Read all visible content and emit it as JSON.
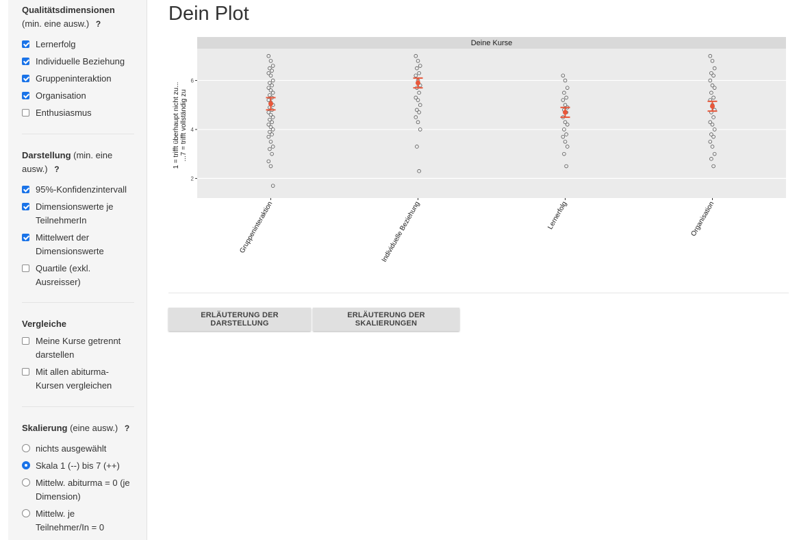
{
  "page_title": "Dein Plot",
  "sidebar": {
    "quality": {
      "title": "Qualitätsdimensionen",
      "hint": "(min. eine ausw.)",
      "help": "?",
      "options": [
        {
          "label": "Lernerfolg",
          "checked": true
        },
        {
          "label": "Individuelle Beziehung",
          "checked": true
        },
        {
          "label": "Gruppeninteraktion",
          "checked": true
        },
        {
          "label": "Organisation",
          "checked": true
        },
        {
          "label": "Enthusiasmus",
          "checked": false
        }
      ]
    },
    "display": {
      "title": "Darstellung",
      "hint": "(min. eine ausw.)",
      "help": "?",
      "options": [
        {
          "line1": "95%-Konfidenzintervall",
          "line2": "",
          "checked": true
        },
        {
          "line1": "Dimensionswerte je",
          "line2": "TeilnehmerIn",
          "checked": true
        },
        {
          "line1": "Mittelwert der",
          "line2": "Dimensionswerte",
          "checked": true
        },
        {
          "line1": "Quartile (exkl.",
          "line2": "Ausreisser)",
          "checked": false
        }
      ]
    },
    "compare": {
      "title": "Vergleiche",
      "options": [
        {
          "line1": "Meine Kurse getrennt",
          "line2": "darstellen",
          "checked": false
        },
        {
          "line1": "Mit allen abiturma-",
          "line2": "Kursen vergleichen",
          "checked": false
        }
      ]
    },
    "scaling": {
      "title": "Skalierung",
      "hint": "(eine ausw.)",
      "help": "?",
      "options": [
        {
          "line1": "nichts ausgewählt",
          "line2": "",
          "selected": false
        },
        {
          "line1": "Skala 1 (--) bis 7 (++)",
          "line2": "",
          "selected": true
        },
        {
          "line1": "Mittelw. abiturma = 0 (je",
          "line2": "Dimension)",
          "selected": false
        },
        {
          "line1": "Mittelw. je",
          "line2": "Teilnehmer/In = 0",
          "selected": false
        }
      ]
    }
  },
  "buttons": {
    "explain_display": "ERLÄUTERUNG DER DARSTELLUNG",
    "explain_scaling": "ERLÄUTERUNG DER SKALIERUNGEN"
  },
  "chart_data": {
    "type": "scatter",
    "facet_title": "Deine Kurse",
    "ylabel_line1": "1 = trifft überhaupt nicht zu...",
    "ylabel_line2": "...7 = trifft vollständig zu",
    "yticks": [
      2,
      4,
      6
    ],
    "ylim": [
      1.2,
      7.3
    ],
    "grid": true,
    "categories": [
      "Gruppeninteraktion",
      "Individuelle Beziehung",
      "Lernerfolg",
      "Organisation"
    ],
    "points": [
      [
        7.0,
        6.8,
        6.6,
        6.5,
        6.4,
        6.3,
        6.2,
        6.0,
        5.9,
        5.8,
        5.7,
        5.6,
        5.5,
        5.4,
        5.3,
        5.2,
        5.1,
        5.0,
        4.9,
        4.8,
        4.7,
        4.6,
        4.5,
        4.4,
        4.3,
        4.2,
        4.1,
        4.0,
        3.9,
        3.8,
        3.7,
        3.5,
        3.3,
        3.2,
        3.0,
        2.7,
        2.5,
        1.7
      ],
      [
        7.0,
        6.8,
        6.6,
        6.5,
        6.3,
        6.2,
        6.0,
        5.8,
        5.7,
        5.5,
        5.3,
        5.2,
        5.0,
        4.8,
        4.7,
        4.5,
        4.3,
        4.0,
        3.3,
        2.3
      ],
      [
        6.2,
        6.0,
        5.7,
        5.5,
        5.3,
        5.2,
        5.0,
        4.9,
        4.8,
        4.7,
        4.5,
        4.3,
        4.2,
        4.0,
        3.8,
        3.7,
        3.5,
        3.3,
        3.0,
        2.5
      ],
      [
        7.0,
        6.8,
        6.5,
        6.3,
        6.2,
        6.0,
        5.8,
        5.7,
        5.5,
        5.3,
        5.2,
        5.0,
        4.8,
        4.7,
        4.5,
        4.3,
        4.2,
        4.0,
        3.8,
        3.7,
        3.5,
        3.3,
        3.0,
        2.8,
        2.5
      ]
    ],
    "means": [
      5.05,
      5.9,
      4.7,
      4.95
    ],
    "ci": [
      [
        4.8,
        5.3
      ],
      [
        5.7,
        6.1
      ],
      [
        4.5,
        4.9
      ],
      [
        4.75,
        5.15
      ]
    ],
    "colors": {
      "panel": "#ebebeb",
      "strip": "#d9d9d9",
      "grid": "#ffffff",
      "point": "#555555",
      "mean": "#e8573a"
    }
  }
}
